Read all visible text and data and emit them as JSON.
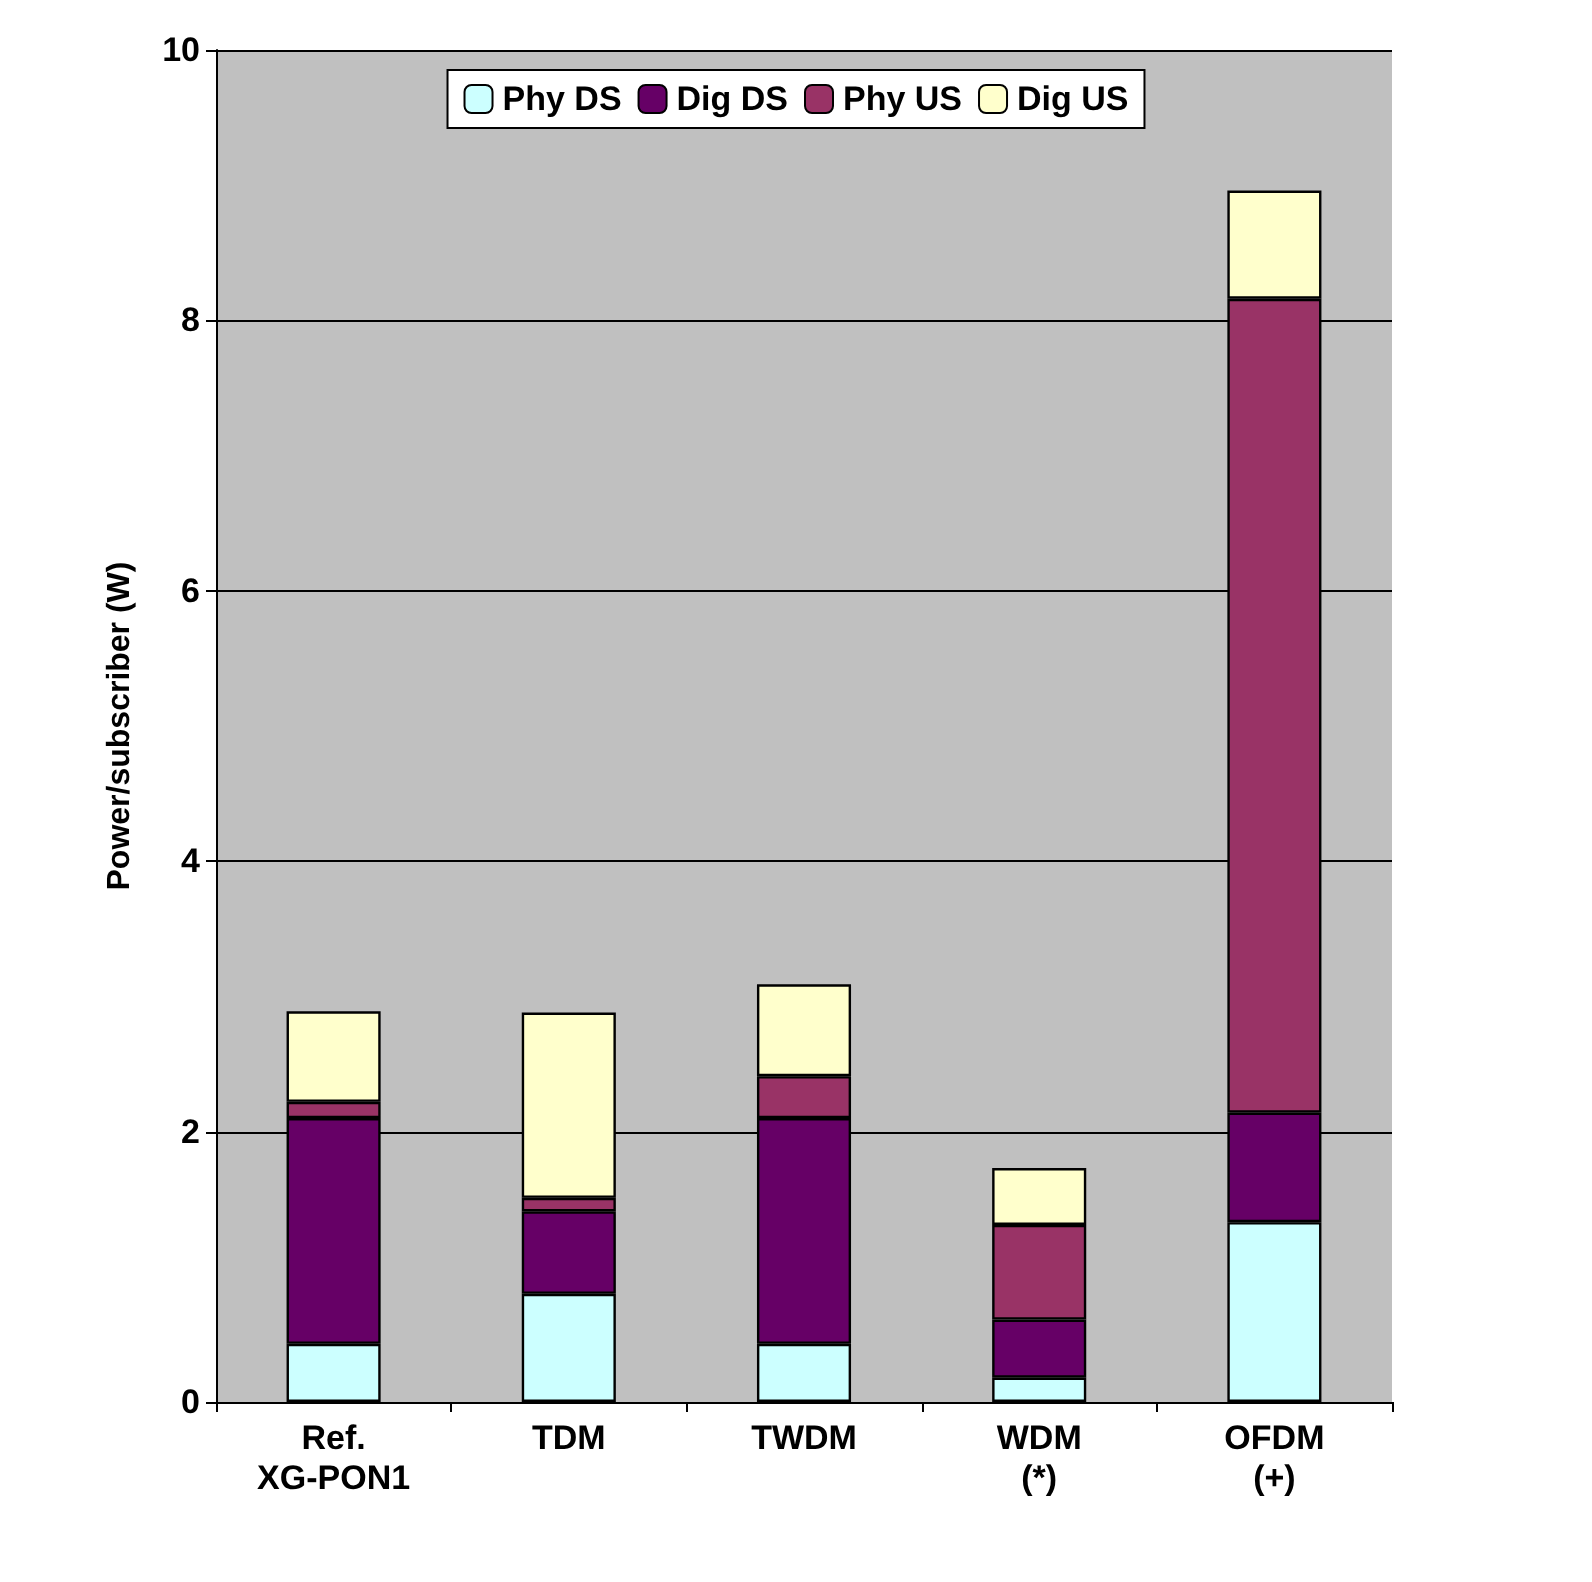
{
  "chart_data": {
    "type": "bar",
    "stacked": true,
    "ylabel": "Power/subscriber (W)",
    "categories": [
      "Ref.\nXG-PON1",
      "TDM",
      "TWDM",
      "WDM\n(*)",
      "OFDM\n(+)"
    ],
    "series": [
      {
        "name": "Phy DS",
        "color": "#ccffff",
        "values": [
          0.43,
          0.8,
          0.43,
          0.18,
          1.33
        ]
      },
      {
        "name": "Dig DS",
        "color": "#660066",
        "values": [
          1.67,
          0.61,
          1.67,
          0.43,
          0.81
        ]
      },
      {
        "name": "Phy US",
        "color": "#993366",
        "values": [
          0.12,
          0.1,
          0.31,
          0.7,
          6.02
        ]
      },
      {
        "name": "Dig US",
        "color": "#ffffcc",
        "values": [
          0.67,
          1.37,
          0.68,
          0.42,
          0.8
        ]
      }
    ],
    "ylim": [
      0,
      10
    ],
    "yticks": [
      0,
      2,
      4,
      6,
      8,
      10
    ],
    "grid": "y",
    "legend": "top"
  }
}
